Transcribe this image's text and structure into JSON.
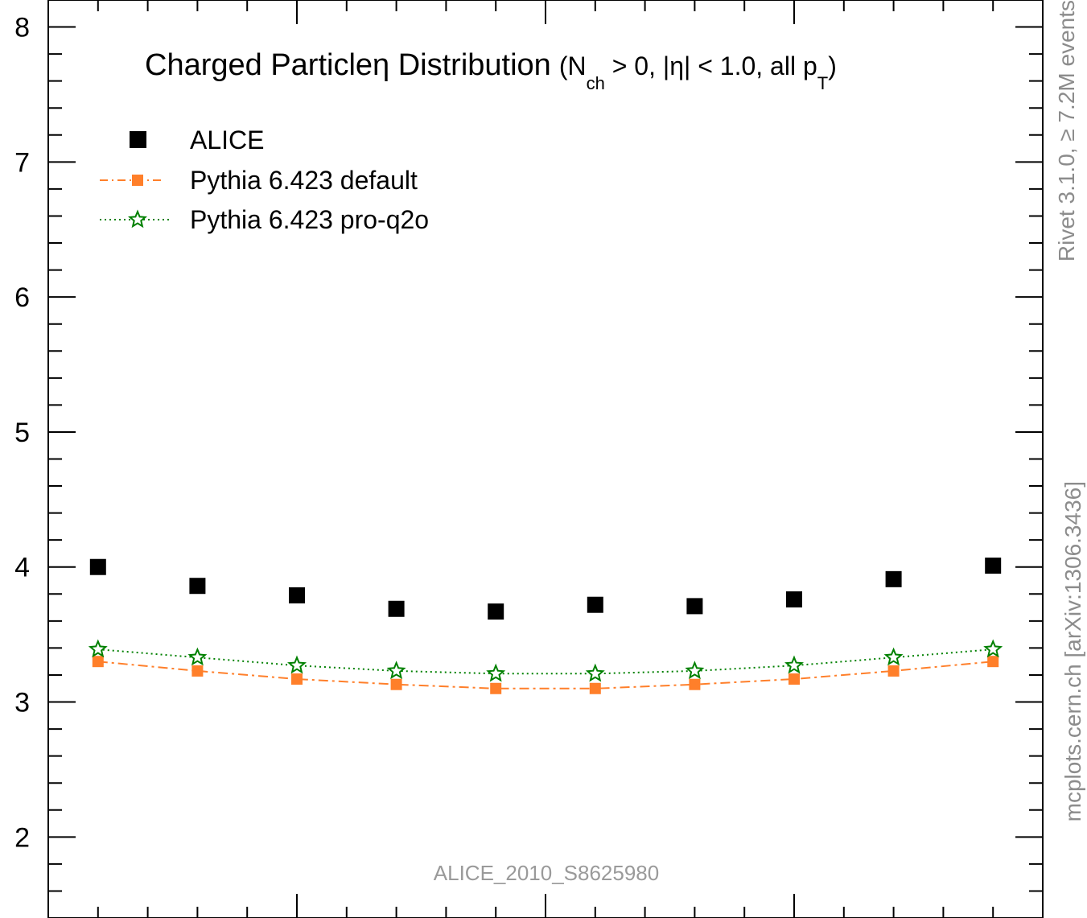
{
  "chart_data": {
    "type": "scatter",
    "title": "Charged Particleη Distribution",
    "title_conditions": {
      "open": "(N",
      "nch_sub": "ch",
      "mid": " > 0, |η| < 1.0, all p",
      "pt_sub": "T",
      "close": ")"
    },
    "xlabel": "",
    "ylabel": "",
    "x": [
      -0.9,
      -0.7,
      -0.5,
      -0.3,
      -0.1,
      0.1,
      0.3,
      0.5,
      0.7,
      0.9
    ],
    "xlim": [
      -1.0,
      1.0
    ],
    "ylim": [
      1.4,
      8.2
    ],
    "y_major_ticks": [
      2,
      3,
      4,
      5,
      6,
      7,
      8
    ],
    "y_tick_labels": [
      "2",
      "3",
      "4",
      "5",
      "6",
      "7",
      "8"
    ],
    "legend_position": "top-left",
    "grid": false,
    "series": [
      {
        "name": "ALICE",
        "style": "marker-only",
        "marker": "filled-square",
        "color": "#000000",
        "values": [
          4.0,
          3.86,
          3.79,
          3.69,
          3.67,
          3.72,
          3.71,
          3.76,
          3.91,
          4.01
        ]
      },
      {
        "name": "Pythia 6.423 default",
        "style": "dash-dot",
        "marker": "filled-square",
        "color": "#ff7f2a",
        "values": [
          3.3,
          3.23,
          3.17,
          3.13,
          3.1,
          3.1,
          3.13,
          3.17,
          3.23,
          3.3
        ]
      },
      {
        "name": "Pythia 6.423 pro-q2o",
        "style": "dotted",
        "marker": "open-star",
        "color": "#008000",
        "values": [
          3.39,
          3.33,
          3.27,
          3.23,
          3.21,
          3.21,
          3.23,
          3.27,
          3.33,
          3.39
        ]
      }
    ],
    "annotations": {
      "analysis": "ALICE_2010_S8625980",
      "side_top": "Rivet 3.1.0, ≥ 7.2M events",
      "side_bottom": "mcplots.cern.ch [arXiv:1306.3436]"
    }
  }
}
